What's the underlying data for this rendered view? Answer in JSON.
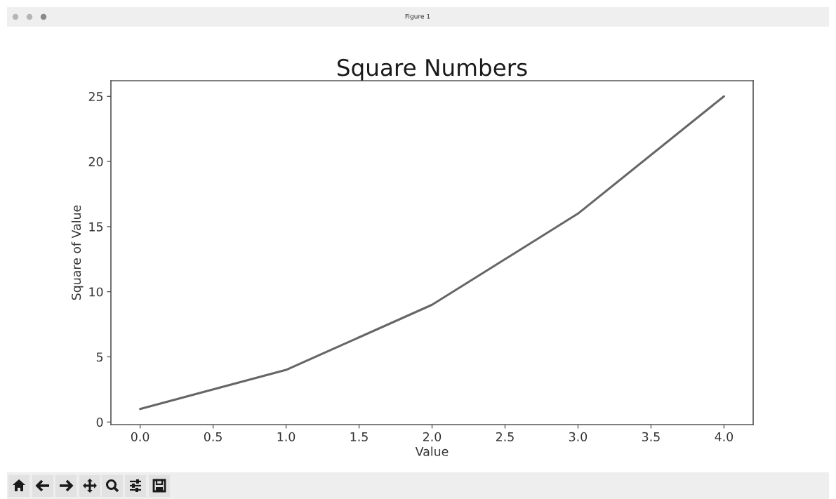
{
  "chart_data": {
    "type": "line",
    "title": "Square Numbers",
    "xlabel": "Value",
    "ylabel": "Square of Value",
    "annotations": [
      "Figure 1"
    ],
    "x": [
      0,
      1,
      2,
      3,
      4
    ],
    "series": [
      {
        "color": "#666666",
        "values": [
          1,
          4,
          9,
          16,
          25
        ]
      }
    ],
    "xlim": [
      -0.2,
      4.2
    ],
    "ylim": [
      -0.2,
      26.2
    ],
    "xticks": [
      {
        "value": 0,
        "label": "0.0"
      },
      0.5,
      {
        "value": 1,
        "label": "1.0"
      },
      1.5,
      {
        "value": 2,
        "label": "2.0"
      },
      2.5,
      {
        "value": 3,
        "label": "3.0"
      },
      3.5,
      {
        "value": 4,
        "label": "4.0"
      }
    ],
    "yticks": [
      0,
      5,
      10,
      15,
      20,
      25
    ],
    "marker": "none",
    "line_style": "solid"
  }
}
